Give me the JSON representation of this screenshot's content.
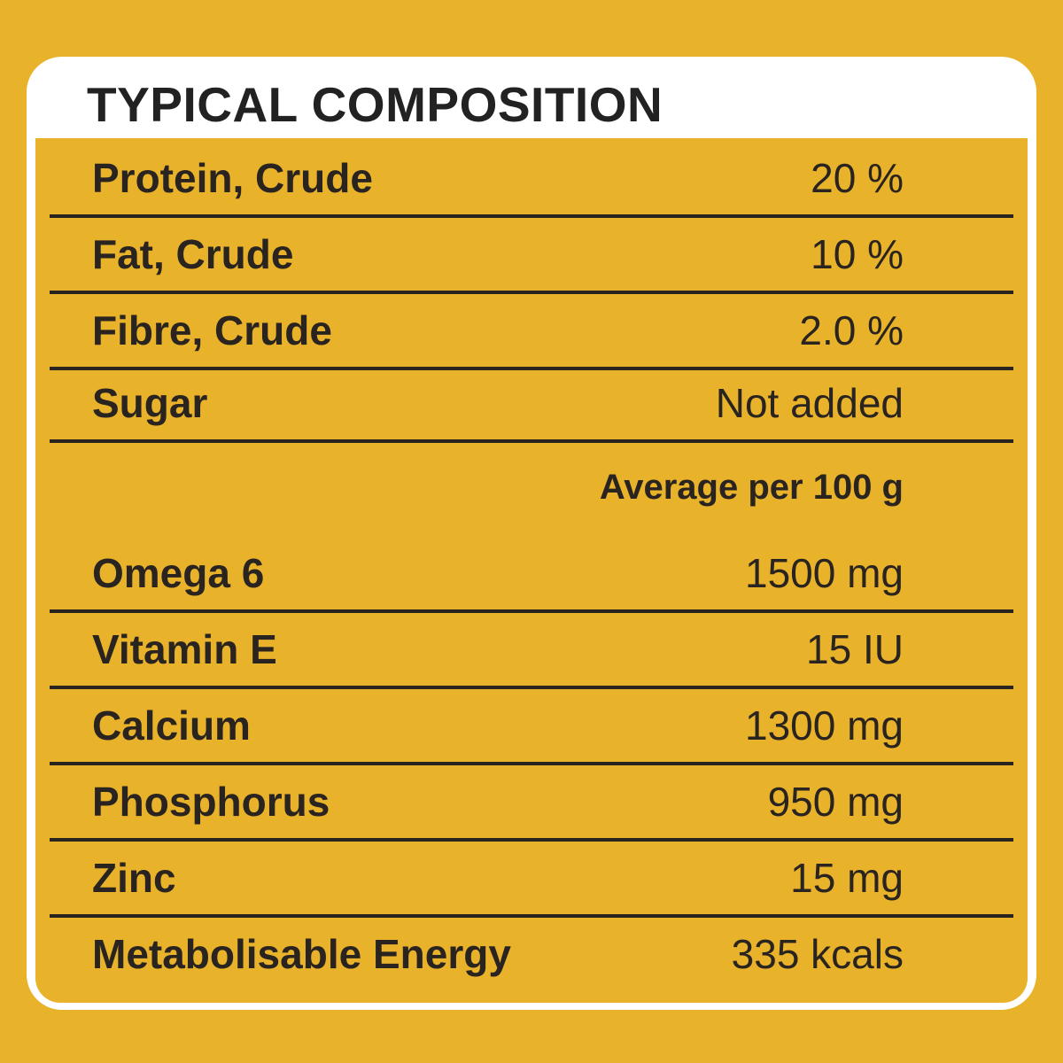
{
  "title": "TYPICAL COMPOSITION",
  "colors": {
    "background": "#e9b22b",
    "panel": "#ffffff",
    "text": "#2a2420"
  },
  "composition": [
    {
      "label": "Protein, Crude",
      "value": "20 %"
    },
    {
      "label": "Fat, Crude",
      "value": "10 %"
    },
    {
      "label": "Fibre, Crude",
      "value": "2.0 %"
    },
    {
      "label": "Sugar",
      "value": "Not added"
    }
  ],
  "average_heading": "Average per 100 g",
  "nutrients": [
    {
      "label": "Omega 6",
      "value": "1500 mg"
    },
    {
      "label": "Vitamin E",
      "value": "15 IU"
    },
    {
      "label": "Calcium",
      "value": "1300 mg"
    },
    {
      "label": "Phosphorus",
      "value": "950 mg"
    },
    {
      "label": "Zinc",
      "value": "15 mg"
    },
    {
      "label": "Metabolisable Energy",
      "value": "335 kcals"
    }
  ]
}
